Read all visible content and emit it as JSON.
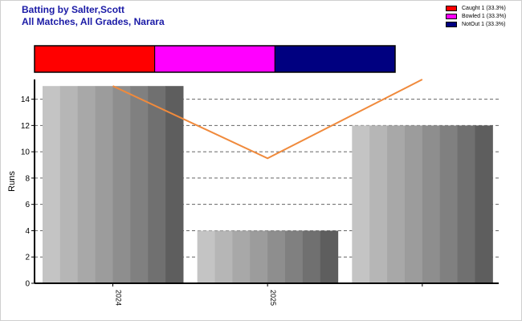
{
  "title": {
    "line1": "Batting by Salter,Scott",
    "line2": "All Matches, All Grades, Narara"
  },
  "legend": [
    {
      "label": "Caught 1 (33.3%)",
      "color": "#ff0000"
    },
    {
      "label": "Bowled 1 (33.3%)",
      "color": "#ff00ff"
    },
    {
      "label": "NotOut 1 (33.3%)",
      "color": "#000080"
    }
  ],
  "chart_data": {
    "type": "bar",
    "ylabel": "Runs",
    "xlabel": "",
    "ylim": [
      0,
      15.5
    ],
    "yticks": [
      0,
      2,
      4,
      6,
      8,
      10,
      12,
      14
    ],
    "grid": true,
    "categories": [
      "2024",
      "2025",
      ""
    ],
    "series": [
      {
        "values": [
          15,
          4,
          12
        ]
      }
    ],
    "line_series": [
      {
        "color": "#f08a3c",
        "values": [
          15,
          9.5,
          15.5
        ]
      }
    ],
    "dismissal_bar": [
      {
        "label": "Caught",
        "count": 1,
        "percent": 33.3,
        "color": "#ff0000"
      },
      {
        "label": "Bowled",
        "count": 1,
        "percent": 33.3,
        "color": "#ff00ff"
      },
      {
        "label": "NotOut",
        "count": 1,
        "percent": 33.3,
        "color": "#000080"
      }
    ]
  }
}
